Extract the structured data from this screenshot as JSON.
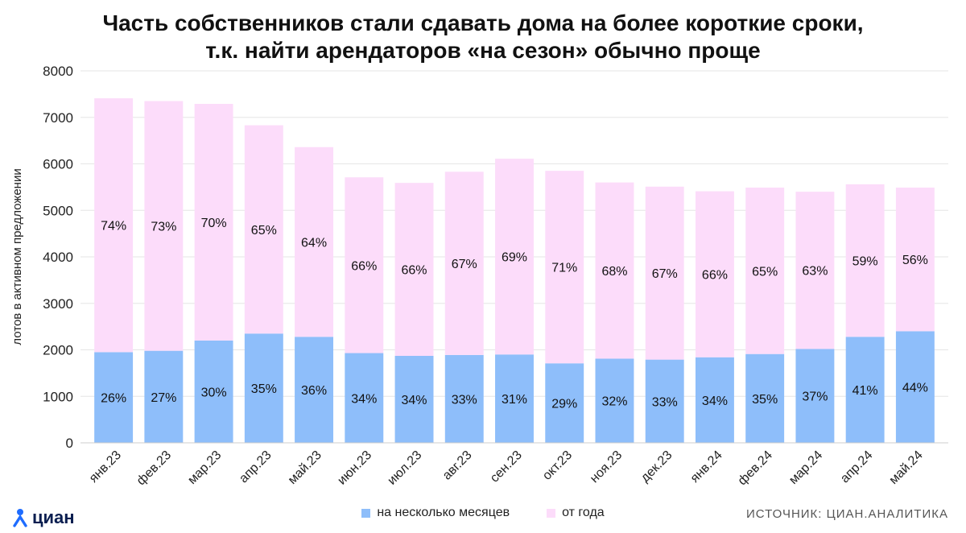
{
  "title_line1": "Часть собственников стали сдавать дома на более короткие сроки,",
  "title_line2": "т.к. найти арендаторов «на сезон» обычно проще",
  "logo_text": "циан",
  "source_text": "ИСТОЧНИК: ЦИАН.АНАЛИТИКА",
  "colors": {
    "short_term": "#8ebefa",
    "long_term": "#fcdcfa",
    "grid": "#e6e6e6",
    "axis": "#cccccc",
    "logo_blue": "#1e6cff",
    "logo_dark": "#0a1e50"
  },
  "chart_data": {
    "type": "bar",
    "stacked": true,
    "title": "Часть собственников стали сдавать дома на более короткие сроки, т.к. найти арендаторов «на сезон» обычно проще",
    "ylabel": "лотов в активном предложении",
    "xlabel": "",
    "ylim": [
      0,
      8000
    ],
    "yticks": [
      "0",
      "1000",
      "2000",
      "3000",
      "4000",
      "5000",
      "6000",
      "7000",
      "8000"
    ],
    "grid": true,
    "legend_position": "bottom",
    "categories": [
      "янв.23",
      "фев.23",
      "мар.23",
      "апр.23",
      "май.23",
      "июн.23",
      "июл.23",
      "авг.23",
      "сен.23",
      "окт.23",
      "ноя.23",
      "дек.23",
      "янв.24",
      "фев.24",
      "мар.24",
      "апр.24",
      "май.24"
    ],
    "series": [
      {
        "name": "на несколько месяцев",
        "values": [
          1950,
          1980,
          2200,
          2350,
          2280,
          1930,
          1870,
          1890,
          1900,
          1710,
          1810,
          1790,
          1840,
          1910,
          2020,
          2280,
          2400
        ],
        "labels": [
          "26%",
          "27%",
          "30%",
          "35%",
          "36%",
          "34%",
          "34%",
          "33%",
          "31%",
          "29%",
          "32%",
          "33%",
          "34%",
          "35%",
          "37%",
          "41%",
          "44%"
        ]
      },
      {
        "name": "от года",
        "values": [
          5460,
          5370,
          5090,
          4480,
          4080,
          3780,
          3720,
          3940,
          4210,
          4140,
          3790,
          3720,
          3570,
          3580,
          3380,
          3280,
          3090
        ],
        "labels": [
          "74%",
          "73%",
          "70%",
          "65%",
          "64%",
          "66%",
          "66%",
          "67%",
          "69%",
          "71%",
          "68%",
          "67%",
          "66%",
          "65%",
          "63%",
          "59%",
          "56%"
        ]
      }
    ]
  }
}
